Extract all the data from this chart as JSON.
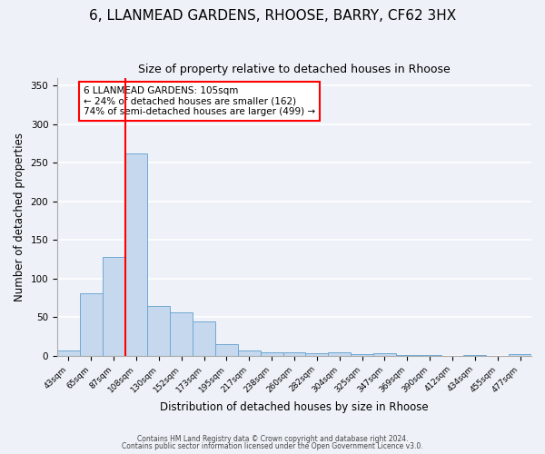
{
  "title": "6, LLANMEAD GARDENS, RHOOSE, BARRY, CF62 3HX",
  "subtitle": "Size of property relative to detached houses in Rhoose",
  "xlabel": "Distribution of detached houses by size in Rhoose",
  "ylabel": "Number of detached properties",
  "bin_labels": [
    "43sqm",
    "65sqm",
    "87sqm",
    "108sqm",
    "130sqm",
    "152sqm",
    "173sqm",
    "195sqm",
    "217sqm",
    "238sqm",
    "260sqm",
    "282sqm",
    "304sqm",
    "325sqm",
    "347sqm",
    "369sqm",
    "390sqm",
    "412sqm",
    "434sqm",
    "455sqm",
    "477sqm"
  ],
  "bar_heights": [
    7,
    81,
    128,
    262,
    65,
    56,
    44,
    15,
    7,
    5,
    5,
    3,
    4,
    2,
    3,
    1,
    1,
    0,
    1,
    0,
    2
  ],
  "bar_color": "#c5d8ed",
  "bar_edgecolor": "#6fa8d4",
  "vline_x_index": 3,
  "vline_color": "red",
  "annotation_title": "6 LLANMEAD GARDENS: 105sqm",
  "annotation_line1": "← 24% of detached houses are smaller (162)",
  "annotation_line2": "74% of semi-detached houses are larger (499) →",
  "ylim": [
    0,
    360
  ],
  "yticks": [
    0,
    50,
    100,
    150,
    200,
    250,
    300,
    350
  ],
  "footer1": "Contains HM Land Registry data © Crown copyright and database right 2024.",
  "footer2": "Contains public sector information licensed under the Open Government Licence v3.0.",
  "title_fontsize": 11,
  "subtitle_fontsize": 9,
  "background_color": "#eef2f8",
  "plot_bg_color": "#eef2f8"
}
